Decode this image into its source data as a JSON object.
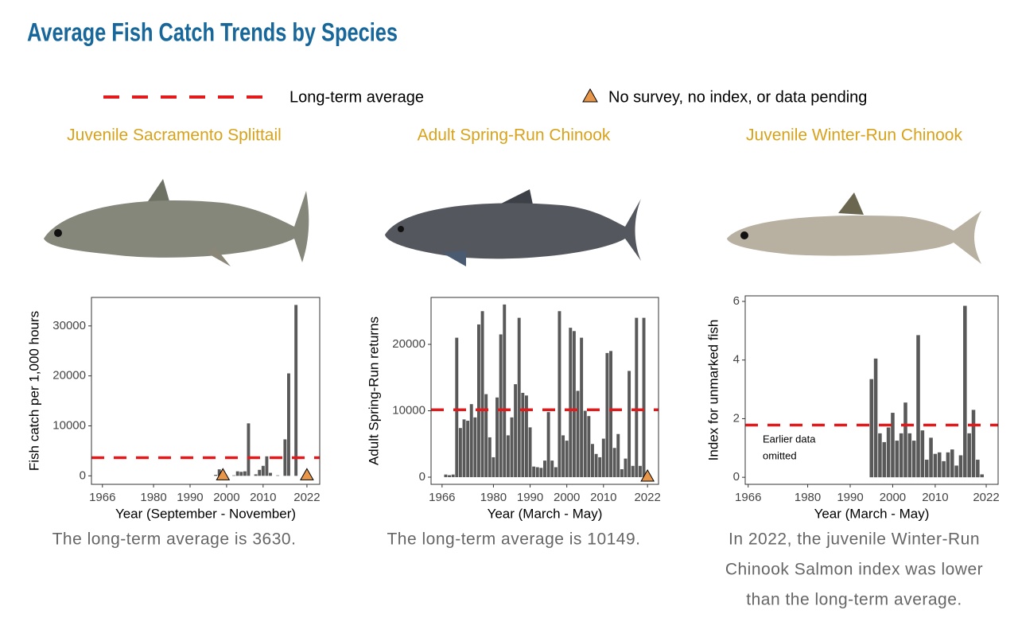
{
  "title": "Average Fish Catch Trends by Species",
  "legend": {
    "average": "Long-term average",
    "missing": "No survey, no index, or data pending",
    "average_color": "#e31a1c",
    "missing_color": "#e8964a"
  },
  "chart_data": [
    {
      "type": "bar",
      "title": "Juvenile Sacramento Splittail",
      "y_label": "Fish catch per 1,000 hours",
      "x_label": "Year (September - November)",
      "x": [
        1997,
        1998,
        2002,
        2003,
        2004,
        2005,
        2006,
        2008,
        2009,
        2010,
        2011,
        2012,
        2014,
        2016,
        2017,
        2019
      ],
      "values": [
        200,
        1300,
        100,
        900,
        800,
        900,
        10500,
        300,
        1200,
        2000,
        3900,
        600,
        100,
        7300,
        20500,
        34200
      ],
      "color": "#595959",
      "average": 3630,
      "missing": [
        1999,
        2022
      ],
      "xlim": [
        1963,
        2025.5
      ],
      "ylim": [
        -1700,
        35700
      ],
      "xticks": [
        1966,
        1980,
        1990,
        2000,
        2010,
        2022
      ],
      "yticks": [
        0,
        10000,
        20000,
        30000
      ],
      "caption": [
        "The long-term average is 3630."
      ]
    },
    {
      "type": "bar",
      "title": "Adult Spring-Run Chinook",
      "y_label": "Adult Spring-Run returns",
      "x_label": "Year (March - May)",
      "x": [
        1967,
        1968,
        1969,
        1970,
        1971,
        1972,
        1973,
        1974,
        1975,
        1976,
        1977,
        1978,
        1979,
        1980,
        1981,
        1982,
        1983,
        1984,
        1985,
        1986,
        1987,
        1988,
        1989,
        1990,
        1991,
        1992,
        1993,
        1994,
        1995,
        1996,
        1997,
        1998,
        1999,
        2000,
        2001,
        2002,
        2003,
        2004,
        2005,
        2006,
        2007,
        2008,
        2009,
        2010,
        2011,
        2012,
        2013,
        2014,
        2015,
        2016,
        2017,
        2018,
        2019,
        2020,
        2021
      ],
      "values": [
        400,
        300,
        400,
        21000,
        7400,
        8700,
        8500,
        11000,
        9000,
        23000,
        25000,
        12500,
        6000,
        3000,
        12000,
        21500,
        26000,
        6300,
        9000,
        14000,
        24000,
        12700,
        12300,
        7500,
        1600,
        1500,
        1400,
        2500,
        9800,
        2500,
        1500,
        25000,
        6300,
        5500,
        22500,
        22000,
        13000,
        21000,
        10000,
        9200,
        5000,
        3500,
        3000,
        5800,
        18700,
        19000,
        4400,
        6500,
        1200,
        2800,
        16000,
        1700,
        24000,
        1700,
        24000
      ],
      "color": "#595959",
      "average": 10149,
      "missing": [
        2022
      ],
      "xlim": [
        1963,
        2025
      ],
      "ylim": [
        -1078,
        27066
      ],
      "xticks": [
        1966,
        1980,
        1990,
        2000,
        2010,
        2022
      ],
      "yticks": [
        0,
        10000,
        20000
      ],
      "caption": [
        "The long-term average is 10149."
      ]
    },
    {
      "type": "bar",
      "title": "Juvenile Winter-Run Chinook",
      "y_label": "Index for unmarked fish",
      "x_label": "Year (March - May)",
      "x": [
        1995,
        1996,
        1997,
        1998,
        1999,
        2000,
        2001,
        2002,
        2003,
        2004,
        2005,
        2006,
        2007,
        2008,
        2009,
        2010,
        2011,
        2012,
        2013,
        2014,
        2015,
        2016,
        2017,
        2018,
        2019,
        2020,
        2021
      ],
      "values": [
        3.35,
        4.05,
        1.5,
        1.2,
        1.7,
        2.2,
        1.25,
        1.5,
        2.55,
        1.5,
        1.25,
        4.85,
        1.6,
        0.6,
        1.35,
        0.8,
        0.85,
        0.55,
        0.85,
        0.95,
        0.4,
        0.75,
        5.85,
        1.5,
        2.3,
        0.6,
        0.1
      ],
      "color": "#595959",
      "average": 1.78,
      "missing": [],
      "xlim": [
        1965.3,
        2024.8
      ],
      "ylim": [
        -0.24,
        6.19
      ],
      "xticks": [
        1966,
        1980,
        1990,
        2000,
        2010,
        2022
      ],
      "yticks": [
        0,
        2,
        4,
        6
      ],
      "annotation": [
        "Earlier data",
        "omitted"
      ],
      "caption": [
        "In 2022, the juvenile Winter-Run",
        "Chinook Salmon index was lower",
        "than the long-term average."
      ]
    }
  ]
}
